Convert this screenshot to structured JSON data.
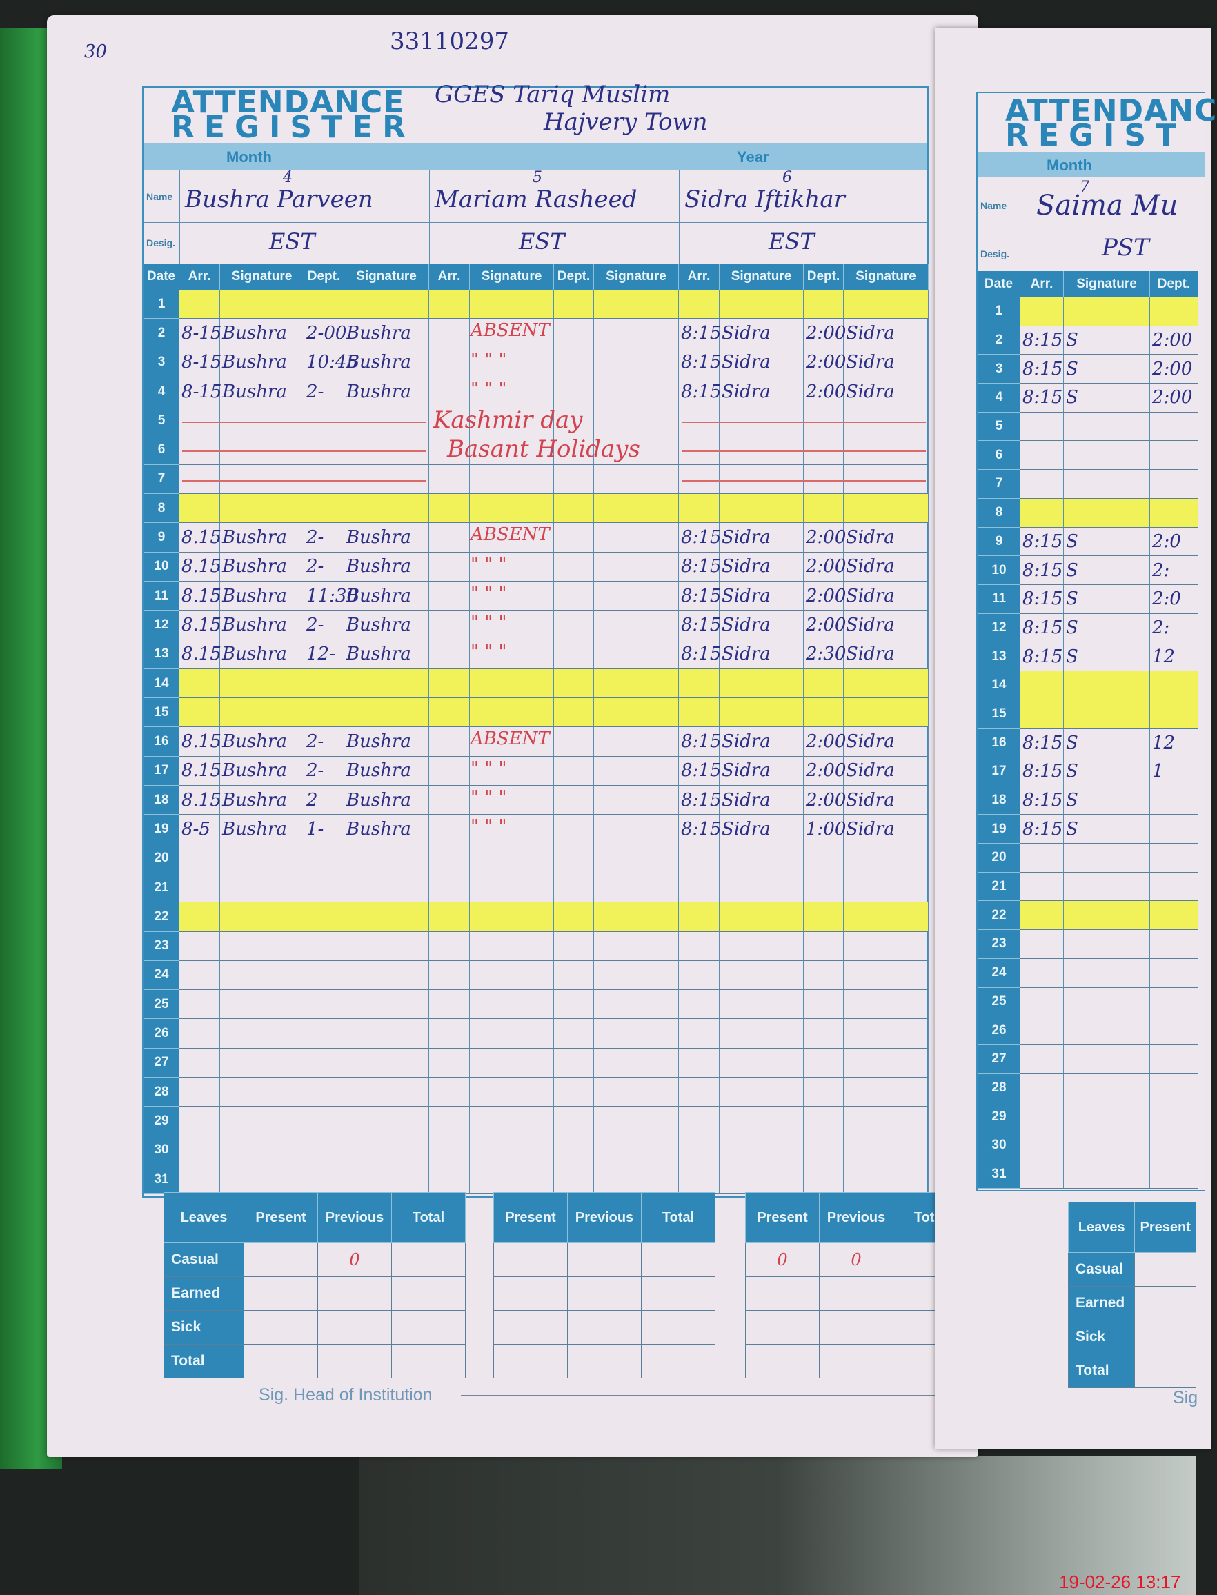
{
  "page_number": "30",
  "header_number": "33110297",
  "school_line1": "GGES   Tariq   Muslim",
  "school_line2": "Hajvery Town",
  "title_line1": "ATTENDANCE",
  "title_line2": "REGISTER",
  "labels": {
    "month": "Month",
    "year": "Year",
    "name": "Name",
    "desig": "Desig.",
    "date": "Date",
    "arr": "Arr.",
    "signature": "Signature",
    "dept": "Dept."
  },
  "highlighted_dates": [
    1,
    8,
    14,
    15,
    22
  ],
  "struck_dates": [
    5,
    6,
    7
  ],
  "employees": [
    {
      "serial": "4",
      "name": "Bushra  Parveen",
      "desig": "EST",
      "entries": {
        "2": {
          "arr": "8-15",
          "sig_in": "Bushra",
          "dept": "2-00",
          "sig_out": "Bushra"
        },
        "3": {
          "arr": "8-15",
          "sig_in": "Bushra",
          "dept": "10:45",
          "sig_out": "Bushra"
        },
        "4": {
          "arr": "8-15",
          "sig_in": "Bushra",
          "dept": "2-",
          "sig_out": "Bushra"
        },
        "9": {
          "arr": "8.15",
          "sig_in": "Bushra",
          "dept": "2-",
          "sig_out": "Bushra"
        },
        "10": {
          "arr": "8.15",
          "sig_in": "Bushra",
          "dept": "2-",
          "sig_out": "Bushra"
        },
        "11": {
          "arr": "8.15",
          "sig_in": "Bushra",
          "dept": "11:30",
          "sig_out": "Bushra"
        },
        "12": {
          "arr": "8.15",
          "sig_in": "Bushra",
          "dept": "2-",
          "sig_out": "Bushra"
        },
        "13": {
          "arr": "8.15",
          "sig_in": "Bushra",
          "dept": "12-",
          "sig_out": "Bushra"
        },
        "16": {
          "arr": "8.15",
          "sig_in": "Bushra",
          "dept": "2-",
          "sig_out": "Bushra"
        },
        "17": {
          "arr": "8.15",
          "sig_in": "Bushra",
          "dept": "2-",
          "sig_out": "Bushra"
        },
        "18": {
          "arr": "8.15",
          "sig_in": "Bushra",
          "dept": "2",
          "sig_out": "Bushra"
        },
        "19": {
          "arr": "8-5",
          "sig_in": "Bushra",
          "dept": "1-",
          "sig_out": "Bushra"
        }
      }
    },
    {
      "serial": "5",
      "name": "Mariam Rasheed",
      "desig": "EST",
      "entries": {
        "2": {
          "note": "ABSENT"
        },
        "3": {
          "note": "\"    \"    \""
        },
        "4": {
          "note": "\"    \"    \""
        },
        "9": {
          "note": "ABSENT"
        },
        "10": {
          "note": "\"    \"    \""
        },
        "11": {
          "note": "\"    \"    \""
        },
        "12": {
          "note": "\"    \"    \""
        },
        "13": {
          "note": "\"    \"    \""
        },
        "16": {
          "note": "ABSENT"
        },
        "17": {
          "note": "\"    \"    \""
        },
        "18": {
          "note": "\"    \"    \""
        },
        "19": {
          "note": "\"    \"    \""
        }
      }
    },
    {
      "serial": "6",
      "name": "Sidra Iftikhar",
      "desig": "EST",
      "entries": {
        "2": {
          "arr": "8:15",
          "sig_in": "Sidra",
          "dept": "2:00",
          "sig_out": "Sidra"
        },
        "3": {
          "arr": "8:15",
          "sig_in": "Sidra",
          "dept": "2:00",
          "sig_out": "Sidra"
        },
        "4": {
          "arr": "8:15",
          "sig_in": "Sidra",
          "dept": "2:00",
          "sig_out": "Sidra"
        },
        "9": {
          "arr": "8:15",
          "sig_in": "Sidra",
          "dept": "2:00",
          "sig_out": "Sidra"
        },
        "10": {
          "arr": "8:15",
          "sig_in": "Sidra",
          "dept": "2:00",
          "sig_out": "Sidra"
        },
        "11": {
          "arr": "8:15",
          "sig_in": "Sidra",
          "dept": "2:00",
          "sig_out": "Sidra"
        },
        "12": {
          "arr": "8:15",
          "sig_in": "Sidra",
          "dept": "2:00",
          "sig_out": "Sidra"
        },
        "13": {
          "arr": "8:15",
          "sig_in": "Sidra",
          "dept": "2:30",
          "sig_out": "Sidra"
        },
        "16": {
          "arr": "8:15",
          "sig_in": "Sidra",
          "dept": "2:00",
          "sig_out": "Sidra"
        },
        "17": {
          "arr": "8:15",
          "sig_in": "Sidra",
          "dept": "2:00",
          "sig_out": "Sidra"
        },
        "18": {
          "arr": "8:15",
          "sig_in": "Sidra",
          "dept": "2:00",
          "sig_out": "Sidra"
        },
        "19": {
          "arr": "8:15",
          "sig_in": "Sidra",
          "dept": "1:00",
          "sig_out": "Sidra"
        }
      }
    }
  ],
  "annotations": {
    "kashmir": "Kashmir   day",
    "basant": "Basant   Holidays"
  },
  "leaves": {
    "header": "Leaves",
    "columns": [
      "Present",
      "Previous",
      "Total"
    ],
    "row_labels": [
      "Casual",
      "Earned",
      "Sick",
      "Total"
    ],
    "tables": [
      {
        "cells": [
          [
            "",
            "0",
            ""
          ],
          [
            "",
            "",
            ""
          ],
          [
            "",
            "",
            ""
          ],
          [
            "",
            "",
            ""
          ]
        ]
      },
      {
        "cells": [
          [
            "",
            "",
            ""
          ],
          [
            "",
            "",
            ""
          ],
          [
            "",
            "",
            ""
          ],
          [
            "",
            "",
            ""
          ]
        ]
      },
      {
        "cells": [
          [
            "0",
            "0",
            ""
          ],
          [
            "",
            "",
            ""
          ],
          [
            "",
            "",
            ""
          ],
          [
            "",
            "",
            ""
          ]
        ]
      }
    ]
  },
  "signature_label": "Sig. Head of Institution",
  "right_page": {
    "title_line1": "ATTENDANC",
    "title_line2": "REGIST",
    "serial": "7",
    "name": "Saima Mu",
    "desig": "PST",
    "sig_short": "Sig",
    "entries": {
      "2": {
        "arr": "8:15",
        "sig_in": "S",
        "dept": "2:00"
      },
      "3": {
        "arr": "8:15",
        "sig_in": "S",
        "dept": "2:00"
      },
      "4": {
        "arr": "8:15",
        "sig_in": "S",
        "dept": "2:00"
      },
      "9": {
        "arr": "8:15",
        "sig_in": "S",
        "dept": "2:0"
      },
      "10": {
        "arr": "8:15",
        "sig_in": "S",
        "dept": "2:"
      },
      "11": {
        "arr": "8:15",
        "sig_in": "S",
        "dept": "2:0"
      },
      "12": {
        "arr": "8:15",
        "sig_in": "S",
        "dept": "2:"
      },
      "13": {
        "arr": "8:15",
        "sig_in": "S",
        "dept": "12"
      },
      "16": {
        "arr": "8:15",
        "sig_in": "S",
        "dept": "12"
      },
      "17": {
        "arr": "8:15",
        "sig_in": "S",
        "dept": "1"
      },
      "18": {
        "arr": "8:15",
        "sig_in": "S",
        "dept": ""
      },
      "19": {
        "arr": "8:15",
        "sig_in": "S",
        "dept": ""
      }
    }
  },
  "timestamp": "19-02-26  13:17",
  "colors": {
    "print_blue": "#2e87b6",
    "ink_blue": "#2c2f86",
    "ink_red": "#d2434e",
    "highlighter": "#f1f25a",
    "binder_green": "#2f9a43",
    "timestamp_red": "#e8142a"
  }
}
